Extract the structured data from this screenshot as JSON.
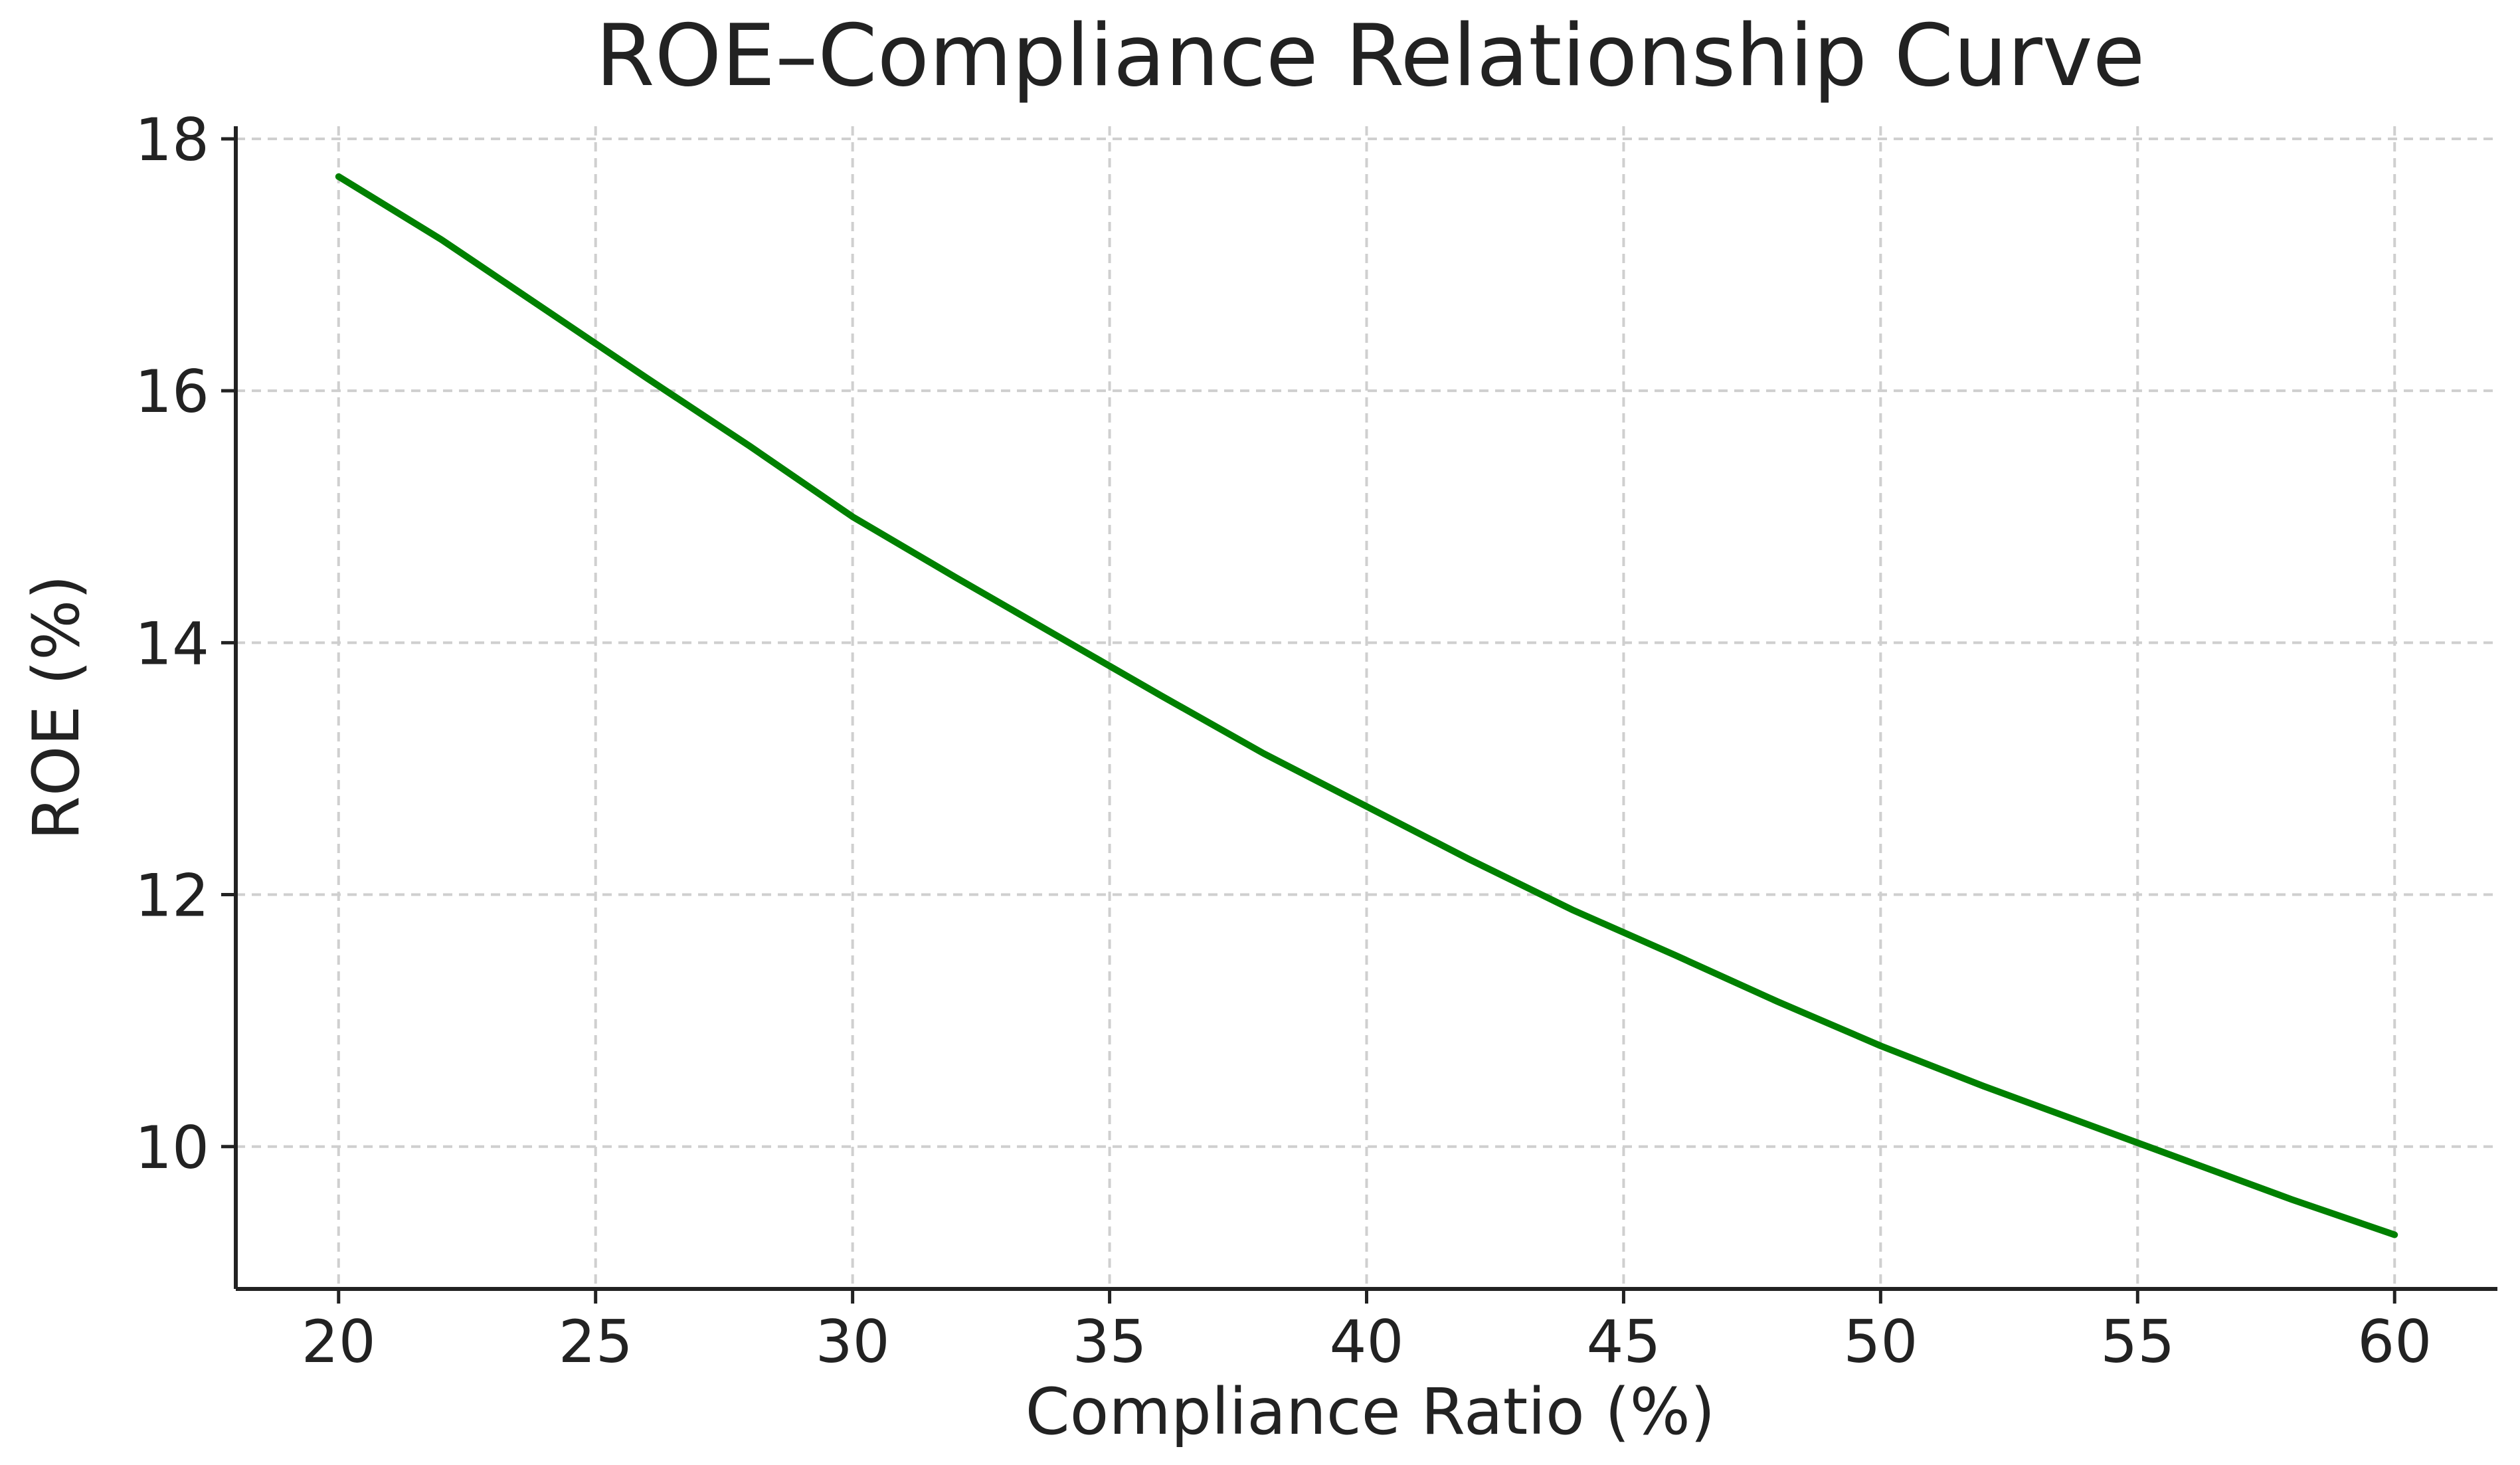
{
  "chart_data": {
    "type": "line",
    "title": "ROE–Compliance Relationship Curve",
    "xlabel": "Compliance Ratio (%)",
    "ylabel": "ROE (%)",
    "xlim": [
      18,
      62
    ],
    "ylim": [
      8.87,
      18.1
    ],
    "xticks": [
      20,
      25,
      30,
      35,
      40,
      45,
      50,
      55,
      60
    ],
    "yticks": [
      10,
      12,
      14,
      16,
      18
    ],
    "grid": true,
    "series": [
      {
        "color": "#008000",
        "points": [
          [
            20,
            17.7
          ],
          [
            22,
            17.2
          ],
          [
            24,
            16.65
          ],
          [
            26,
            16.1
          ],
          [
            28,
            15.56
          ],
          [
            30,
            15.0
          ],
          [
            32,
            14.52
          ],
          [
            34,
            14.05
          ],
          [
            36,
            13.58
          ],
          [
            38,
            13.12
          ],
          [
            40,
            12.7
          ],
          [
            42,
            12.28
          ],
          [
            44,
            11.88
          ],
          [
            46,
            11.52
          ],
          [
            48,
            11.15
          ],
          [
            50,
            10.8
          ],
          [
            52,
            10.48
          ],
          [
            54,
            10.18
          ],
          [
            56,
            9.88
          ],
          [
            58,
            9.58
          ],
          [
            60,
            9.3
          ]
        ]
      }
    ]
  }
}
